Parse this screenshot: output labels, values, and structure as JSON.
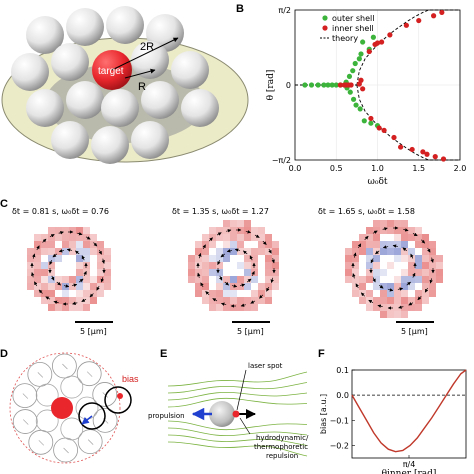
{
  "panels": {
    "A": {
      "label": "",
      "annotations": {
        "two_r": "2R",
        "target": "target",
        "r": "R"
      }
    },
    "B": {
      "label": "B"
    },
    "C": {
      "label": "C",
      "captions": [
        "δt = 0.81 s, ω₀δt = 0.76",
        "δt = 1.35 s, ω₀δt = 1.27",
        "δt = 1.65 s, ω₀δt = 1.58"
      ],
      "scale_bar": "5 [μm]"
    },
    "D": {
      "label": "D",
      "annotations": {
        "bias": "bias"
      }
    },
    "E": {
      "label": "E",
      "annotations": {
        "laser_spot": "laser spot",
        "propulsion": "propulsion",
        "repulsion_1": "hydrodynamic/",
        "repulsion_2": "thermophoretic",
        "repulsion_3": "repulsion"
      }
    },
    "F": {
      "label": "F"
    }
  },
  "colors": {
    "outer_shell": "#3cb43c",
    "inner_shell": "#d42020",
    "theory": "#000000",
    "bias_curve": "#c0392b",
    "target": "#e8262c",
    "plate": "#ecebc8"
  },
  "chart_data": [
    {
      "type": "scatter",
      "panel": "B",
      "xlabel": "ω₀δt",
      "ylabel": "θ [rad]",
      "xlim": [
        0,
        2.0
      ],
      "ylim": [
        -1.5708,
        1.5708
      ],
      "xticks": [
        "0.0",
        "0.5",
        "1.0",
        "1.5",
        "2.0"
      ],
      "yticks": [
        "−π/2",
        "0",
        "π/2"
      ],
      "legend_position": "top-left",
      "series": [
        {
          "name": "outer shell",
          "marker": "circle",
          "color": "#3cb43c",
          "points": [
            [
              0.12,
              0
            ],
            [
              0.2,
              0
            ],
            [
              0.28,
              0
            ],
            [
              0.35,
              0
            ],
            [
              0.4,
              0
            ],
            [
              0.45,
              0
            ],
            [
              0.5,
              0
            ],
            [
              0.55,
              0
            ],
            [
              0.6,
              0
            ],
            [
              0.62,
              0.06
            ],
            [
              0.63,
              -0.06
            ],
            [
              0.66,
              0.18
            ],
            [
              0.67,
              -0.15
            ],
            [
              0.7,
              0.3
            ],
            [
              0.71,
              -0.3
            ],
            [
              0.73,
              0.45
            ],
            [
              0.74,
              -0.42
            ],
            [
              0.78,
              0.55
            ],
            [
              0.79,
              -0.5
            ],
            [
              0.8,
              0.65
            ],
            [
              0.82,
              0.9
            ],
            [
              0.84,
              -0.75
            ],
            [
              0.9,
              0.75
            ],
            [
              0.92,
              -0.8
            ],
            [
              0.95,
              1.0
            ],
            [
              1.0,
              -0.85
            ]
          ]
        },
        {
          "name": "inner shell",
          "marker": "circle",
          "color": "#d42020",
          "points": [
            [
              0.55,
              0
            ],
            [
              0.6,
              0
            ],
            [
              0.62,
              0
            ],
            [
              0.65,
              0
            ],
            [
              0.68,
              0
            ],
            [
              0.78,
              0.02
            ],
            [
              0.8,
              0.1
            ],
            [
              0.82,
              -0.08
            ],
            [
              0.9,
              0.7
            ],
            [
              0.92,
              -0.7
            ],
            [
              0.97,
              0.85
            ],
            [
              1.0,
              0.88
            ],
            [
              1.02,
              -0.9
            ],
            [
              1.05,
              0.9
            ],
            [
              1.08,
              -0.95
            ],
            [
              1.15,
              1.05
            ],
            [
              1.2,
              -1.1
            ],
            [
              1.28,
              -1.3
            ],
            [
              1.35,
              1.25
            ],
            [
              1.42,
              -1.35
            ],
            [
              1.5,
              1.35
            ],
            [
              1.55,
              -1.4
            ],
            [
              1.6,
              -1.45
            ],
            [
              1.68,
              1.45
            ],
            [
              1.7,
              -1.5
            ],
            [
              1.78,
              1.52
            ],
            [
              1.8,
              -1.55
            ]
          ]
        },
        {
          "name": "theory",
          "type": "line",
          "style": "dashed",
          "color": "#000000",
          "branches": {
            "zero": [
              [
                0,
                0
              ],
              [
                0.75,
                0
              ]
            ],
            "upper": [
              [
                0.75,
                0
              ],
              [
                0.78,
                0.3
              ],
              [
                0.85,
                0.55
              ],
              [
                0.95,
                0.75
              ],
              [
                1.05,
                0.92
              ],
              [
                1.15,
                1.07
              ],
              [
                1.25,
                1.2
              ],
              [
                1.35,
                1.32
              ],
              [
                1.45,
                1.43
              ],
              [
                1.55,
                1.52
              ],
              [
                1.62,
                1.5708
              ],
              [
                2.0,
                1.5708
              ]
            ],
            "lower": [
              [
                0.75,
                0
              ],
              [
                0.78,
                -0.3
              ],
              [
                0.85,
                -0.55
              ],
              [
                0.95,
                -0.75
              ],
              [
                1.05,
                -0.92
              ],
              [
                1.15,
                -1.07
              ],
              [
                1.25,
                -1.2
              ],
              [
                1.35,
                -1.32
              ],
              [
                1.45,
                -1.43
              ],
              [
                1.55,
                -1.52
              ],
              [
                1.62,
                -1.5708
              ],
              [
                2.0,
                -1.5708
              ]
            ]
          }
        }
      ]
    },
    {
      "type": "line",
      "panel": "F",
      "xlabel": "θinner [rad]",
      "ylabel": "bias [a.u.]",
      "xlim": [
        0,
        1.5708
      ],
      "ylim": [
        -0.25,
        0.1
      ],
      "xticks": [
        "π/4"
      ],
      "yticks": [
        "0.1",
        "0.0",
        "−0.1",
        "−0.2"
      ],
      "series": [
        {
          "name": "",
          "color": "#c0392b",
          "points": [
            [
              0,
              0.0
            ],
            [
              0.1,
              -0.05
            ],
            [
              0.2,
              -0.1
            ],
            [
              0.3,
              -0.15
            ],
            [
              0.4,
              -0.19
            ],
            [
              0.5,
              -0.215
            ],
            [
              0.6,
              -0.225
            ],
            [
              0.7,
              -0.22
            ],
            [
              0.8,
              -0.2
            ],
            [
              0.9,
              -0.17
            ],
            [
              1.0,
              -0.13
            ],
            [
              1.1,
              -0.09
            ],
            [
              1.2,
              -0.045
            ],
            [
              1.3,
              0.0
            ],
            [
              1.4,
              0.045
            ],
            [
              1.5,
              0.085
            ],
            [
              1.5708,
              0.1
            ]
          ]
        },
        {
          "name": "",
          "style": "dashed",
          "color": "#000000",
          "points": [
            [
              0,
              0
            ],
            [
              1.5708,
              0
            ]
          ]
        }
      ]
    }
  ]
}
